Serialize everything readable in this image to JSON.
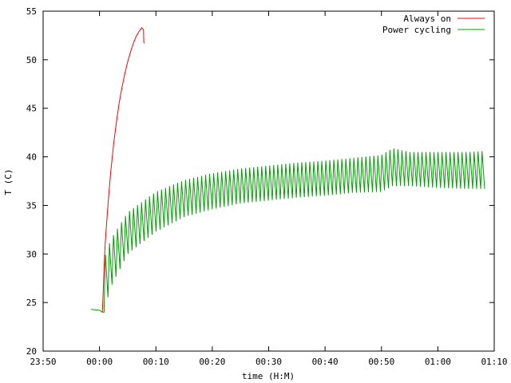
{
  "chart_data": {
    "type": "line",
    "title": "",
    "xlabel": "time (H:M)",
    "ylabel": "T (C)",
    "x_unit": "minutes",
    "xlim": [
      -10,
      70
    ],
    "ylim": [
      20,
      55
    ],
    "x_ticks": [
      -10,
      0,
      10,
      20,
      30,
      40,
      50,
      60,
      70
    ],
    "x_tick_labels": [
      "23:50",
      "00:00",
      "00:10",
      "00:20",
      "00:30",
      "00:40",
      "00:50",
      "01:00",
      "01:10"
    ],
    "y_ticks": [
      20,
      25,
      30,
      35,
      40,
      45,
      50,
      55
    ],
    "y_tick_labels": [
      "20",
      "25",
      "30",
      "35",
      "40",
      "45",
      "50",
      "55"
    ],
    "grid": false,
    "legend_position": "top-right",
    "series": [
      {
        "name": "Always on",
        "color": "#ff0000",
        "x": [
          0.5,
          0.65,
          0.8,
          1.0,
          1.3,
          1.6,
          2.0,
          2.5,
          3.0,
          3.5,
          4.0,
          4.5,
          5.0,
          5.5,
          6.0,
          6.5,
          7.0,
          7.5,
          7.8,
          7.85,
          8.0
        ],
        "y": [
          24.0,
          26.0,
          28.5,
          31.0,
          33.5,
          35.8,
          38.5,
          41.3,
          43.6,
          45.6,
          47.2,
          48.6,
          49.8,
          50.8,
          51.7,
          52.4,
          52.9,
          53.3,
          53.1,
          51.8,
          51.7
        ]
      },
      {
        "name": "Power cycling",
        "color": "#00a000",
        "waveform": "sawtooth",
        "x_start": 0.8,
        "x_end": 68.3,
        "cycles": 95,
        "low_x": [
          0.8,
          2,
          5,
          10,
          15,
          20,
          25,
          30,
          35,
          40,
          45,
          50,
          52,
          55,
          60,
          65,
          68.3
        ],
        "low_y": [
          24.0,
          26.6,
          30.0,
          32.3,
          33.8,
          34.6,
          35.2,
          35.5,
          35.8,
          36.0,
          36.3,
          36.4,
          37.0,
          37.0,
          36.8,
          36.7,
          36.7
        ],
        "high_x": [
          0.8,
          2,
          5,
          10,
          15,
          20,
          25,
          30,
          35,
          40,
          45,
          50,
          52,
          55,
          60,
          65,
          68.3
        ],
        "high_y": [
          29.5,
          31.5,
          34.3,
          36.4,
          37.6,
          38.3,
          38.8,
          39.1,
          39.4,
          39.6,
          39.9,
          40.2,
          40.9,
          40.5,
          40.5,
          40.5,
          40.6
        ],
        "pre_x": [
          -1.5,
          0.0,
          0.5,
          0.8
        ],
        "pre_y": [
          24.3,
          24.2,
          24.0,
          24.0
        ]
      }
    ]
  }
}
